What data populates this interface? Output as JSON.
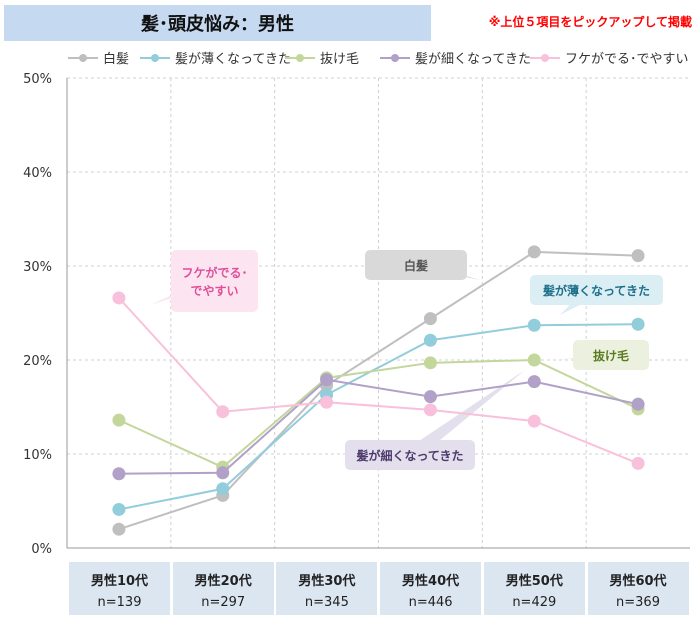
{
  "title": "髪･頭皮悩み：男性",
  "note": "※上位５項目をピックアップして掲載",
  "chart_data": {
    "type": "line",
    "categories": [
      "男性10代",
      "男性20代",
      "男性30代",
      "男性40代",
      "男性50代",
      "男性60代"
    ],
    "sample_sizes": [
      "n=139",
      "n=297",
      "n=345",
      "n=446",
      "n=429",
      "n=369"
    ],
    "yticks": [
      "0%",
      "10%",
      "20%",
      "30%",
      "40%",
      "50%"
    ],
    "ylim": [
      0,
      50
    ],
    "grid": true,
    "legend": "top",
    "series": [
      {
        "name": "白髪",
        "color": "#bfbfbf",
        "values": [
          2.0,
          5.6,
          17.3,
          24.4,
          31.5,
          31.1
        ]
      },
      {
        "name": "髪が薄くなってきた",
        "color": "#92cddc",
        "values": [
          4.1,
          6.3,
          16.3,
          22.1,
          23.7,
          23.8
        ]
      },
      {
        "name": "抜け毛",
        "color": "#c3d69b",
        "values": [
          13.6,
          8.6,
          18.1,
          19.7,
          20.0,
          14.8
        ]
      },
      {
        "name": "髪が細くなってきた",
        "color": "#b1a0c7",
        "values": [
          7.9,
          8.0,
          17.9,
          16.1,
          17.7,
          15.3
        ]
      },
      {
        "name": "フケがでる･でやすい",
        "color": "#f9c0dc",
        "values": [
          26.6,
          14.5,
          15.5,
          14.7,
          13.5,
          9.0
        ]
      }
    ],
    "callouts": [
      {
        "text": "フケがでる･\nでやすい",
        "series": 4,
        "bg": "#fce4f1",
        "color": "#e0509a"
      },
      {
        "text": "白髪",
        "series": 0,
        "bg": "#d9d9d9",
        "color": "#555"
      },
      {
        "text": "髪が薄くなってきた",
        "series": 1,
        "bg": "#daeef3",
        "color": "#1f6f8b"
      },
      {
        "text": "抜け毛",
        "series": 2,
        "bg": "#ebf1de",
        "color": "#5a7a1e"
      },
      {
        "text": "髪が細くなってきた",
        "series": 3,
        "bg": "#e4dfec",
        "color": "#4b3a6b"
      }
    ]
  }
}
